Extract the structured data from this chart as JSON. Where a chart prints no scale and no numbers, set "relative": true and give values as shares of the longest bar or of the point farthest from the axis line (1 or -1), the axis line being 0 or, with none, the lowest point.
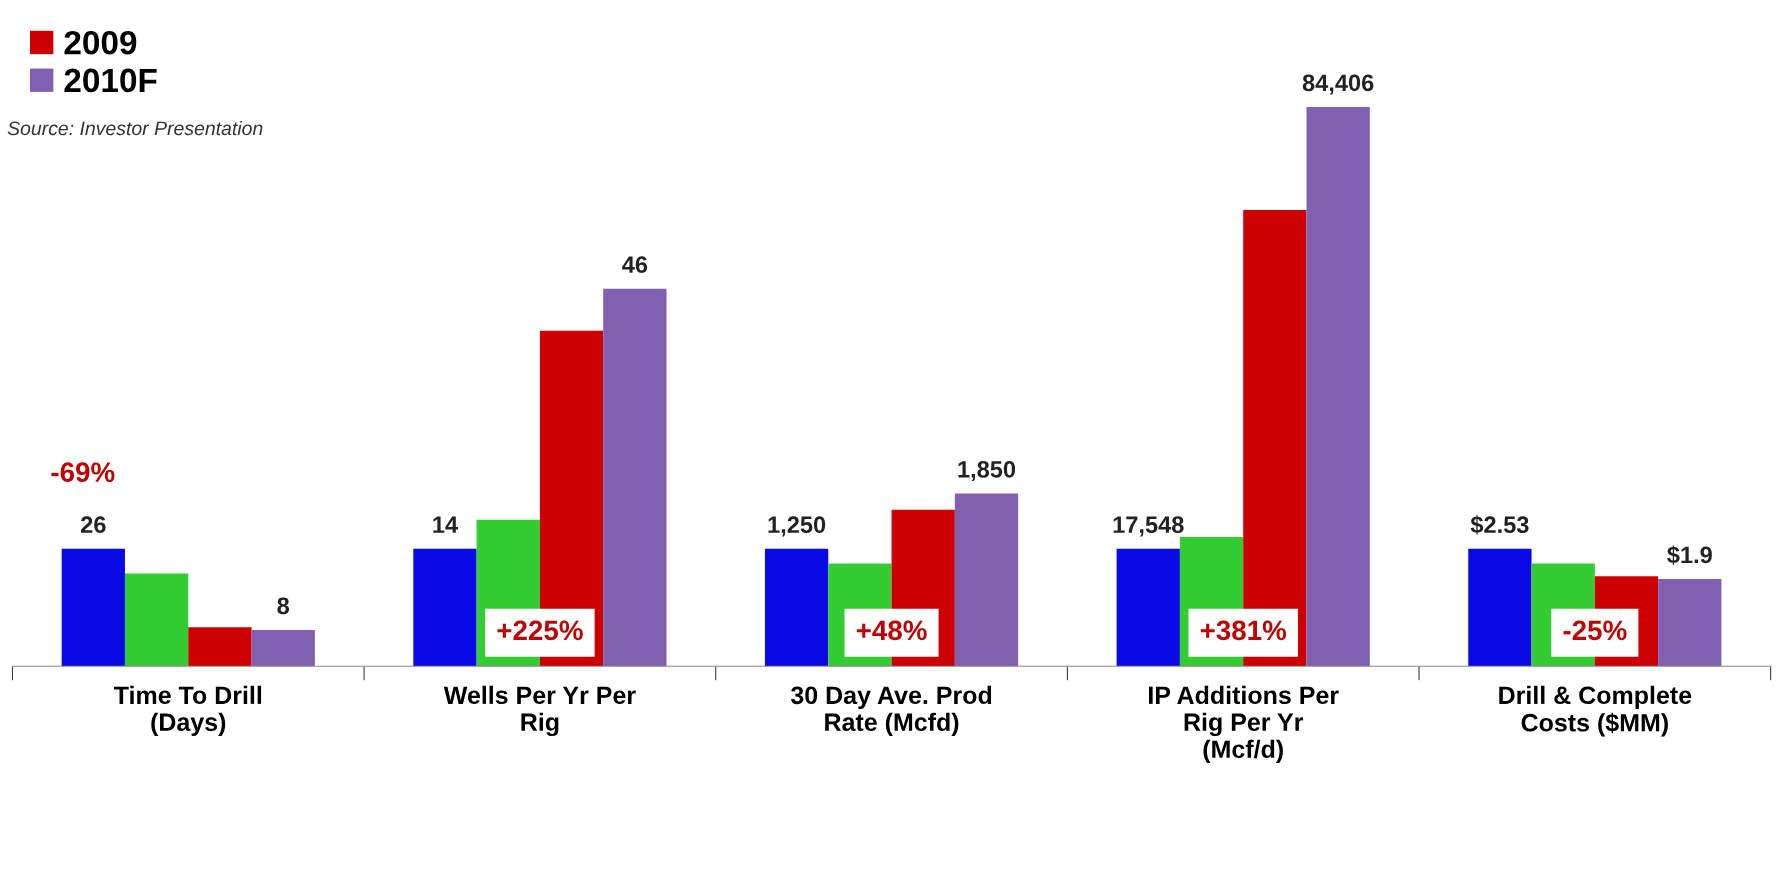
{
  "chart_data": {
    "type": "bar",
    "relative": true,
    "categories": [
      "Time To Drill\n(Days)",
      "Wells Per Yr Per\nRig",
      "30 Day Ave. Prod\nRate (Mcfd)",
      "IP Additions Per\nRig Per Yr\n(Mcf/d)",
      "Drill & Complete\nCosts ($MM)"
    ],
    "series": [
      {
        "color": "#0a0ae6",
        "values": [
          0.21,
          0.21,
          0.21,
          0.21,
          0.21
        ]
      },
      {
        "color": "#33cc33",
        "values": [
          0.166,
          0.262,
          0.184,
          0.231,
          0.184
        ]
      },
      {
        "name": "2009",
        "color": "#cc0000",
        "values": [
          0.07,
          0.6,
          0.28,
          0.816,
          0.161
        ]
      },
      {
        "name": "2010F",
        "color": "#8060b0",
        "values": [
          0.065,
          0.675,
          0.309,
          1.0,
          0.156
        ]
      }
    ],
    "annotations": [
      "-69%",
      "+225%",
      "+48%",
      "+381%",
      "-25%",
      "Source: Investor Presentation",
      "26",
      "14",
      "1,250",
      "17,548",
      "$2.53",
      "8",
      "46",
      "1,850",
      "84,406",
      "$1.9"
    ],
    "legend": "top left",
    "grid": false
  }
}
